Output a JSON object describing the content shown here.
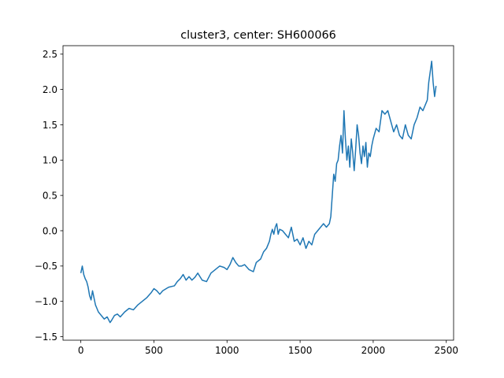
{
  "chart_data": {
    "type": "line",
    "title": "cluster3, center: SH600066",
    "xlabel": "",
    "ylabel": "",
    "xlim": [
      -122,
      2550
    ],
    "ylim": [
      -1.55,
      2.62
    ],
    "x_ticks": [
      0,
      500,
      1000,
      1500,
      2000,
      2500
    ],
    "y_ticks": [
      -1.5,
      -1.0,
      -0.5,
      0.0,
      0.5,
      1.0,
      1.5,
      2.0,
      2.5
    ],
    "x_tick_labels": [
      "0",
      "500",
      "1000",
      "1500",
      "2000",
      "2500"
    ],
    "y_tick_labels": [
      "−1.5",
      "−1.0",
      "−0.5",
      "0.0",
      "0.5",
      "1.0",
      "1.5",
      "2.0",
      "2.5"
    ],
    "grid": false,
    "legend": "none",
    "series": [
      {
        "color": "#1f77b4",
        "x": [
          0,
          10,
          20,
          30,
          40,
          50,
          60,
          70,
          80,
          90,
          100,
          110,
          120,
          140,
          160,
          180,
          200,
          210,
          230,
          250,
          270,
          300,
          330,
          360,
          390,
          420,
          450,
          480,
          500,
          520,
          540,
          560,
          600,
          640,
          660,
          680,
          700,
          720,
          740,
          760,
          780,
          800,
          830,
          860,
          890,
          920,
          950,
          980,
          1000,
          1020,
          1040,
          1060,
          1080,
          1100,
          1120,
          1150,
          1180,
          1200,
          1230,
          1250,
          1270,
          1290,
          1300,
          1310,
          1320,
          1330,
          1340,
          1350,
          1360,
          1380,
          1400,
          1420,
          1440,
          1460,
          1480,
          1500,
          1520,
          1540,
          1560,
          1580,
          1600,
          1620,
          1640,
          1660,
          1680,
          1700,
          1710,
          1720,
          1730,
          1740,
          1750,
          1760,
          1770,
          1780,
          1790,
          1800,
          1810,
          1820,
          1830,
          1840,
          1850,
          1860,
          1870,
          1880,
          1890,
          1900,
          1910,
          1920,
          1930,
          1940,
          1950,
          1960,
          1970,
          1980,
          1990,
          2000,
          2020,
          2040,
          2060,
          2080,
          2100,
          2120,
          2140,
          2160,
          2180,
          2200,
          2220,
          2240,
          2260,
          2280,
          2300,
          2320,
          2340,
          2360,
          2370,
          2380,
          2390,
          2400,
          2410,
          2420,
          2430
        ],
        "y": [
          -0.6,
          -0.5,
          -0.62,
          -0.68,
          -0.72,
          -0.8,
          -0.92,
          -0.98,
          -0.85,
          -0.95,
          -1.05,
          -1.1,
          -1.15,
          -1.2,
          -1.25,
          -1.22,
          -1.3,
          -1.27,
          -1.2,
          -1.18,
          -1.22,
          -1.15,
          -1.1,
          -1.12,
          -1.05,
          -1.0,
          -0.95,
          -0.88,
          -0.82,
          -0.85,
          -0.9,
          -0.85,
          -0.8,
          -0.78,
          -0.72,
          -0.68,
          -0.62,
          -0.7,
          -0.65,
          -0.7,
          -0.66,
          -0.6,
          -0.7,
          -0.72,
          -0.6,
          -0.55,
          -0.5,
          -0.52,
          -0.55,
          -0.48,
          -0.38,
          -0.45,
          -0.5,
          -0.5,
          -0.48,
          -0.55,
          -0.58,
          -0.45,
          -0.4,
          -0.3,
          -0.25,
          -0.15,
          -0.05,
          0.02,
          -0.05,
          0.05,
          0.1,
          -0.05,
          0.02,
          0.0,
          -0.05,
          -0.1,
          0.05,
          -0.15,
          -0.12,
          -0.2,
          -0.1,
          -0.25,
          -0.15,
          -0.2,
          -0.05,
          0.0,
          0.05,
          0.1,
          0.05,
          0.1,
          0.2,
          0.5,
          0.8,
          0.7,
          0.95,
          1.0,
          1.2,
          1.35,
          1.1,
          1.7,
          1.3,
          1.0,
          1.2,
          0.9,
          1.3,
          1.1,
          0.85,
          1.15,
          1.5,
          1.35,
          1.1,
          0.95,
          1.2,
          1.05,
          1.25,
          0.9,
          1.1,
          1.05,
          1.2,
          1.3,
          1.45,
          1.4,
          1.7,
          1.65,
          1.7,
          1.55,
          1.4,
          1.5,
          1.35,
          1.3,
          1.5,
          1.35,
          1.3,
          1.5,
          1.6,
          1.75,
          1.7,
          1.8,
          1.85,
          2.1,
          2.25,
          2.4,
          2.1,
          1.9,
          2.05
        ]
      }
    ]
  }
}
